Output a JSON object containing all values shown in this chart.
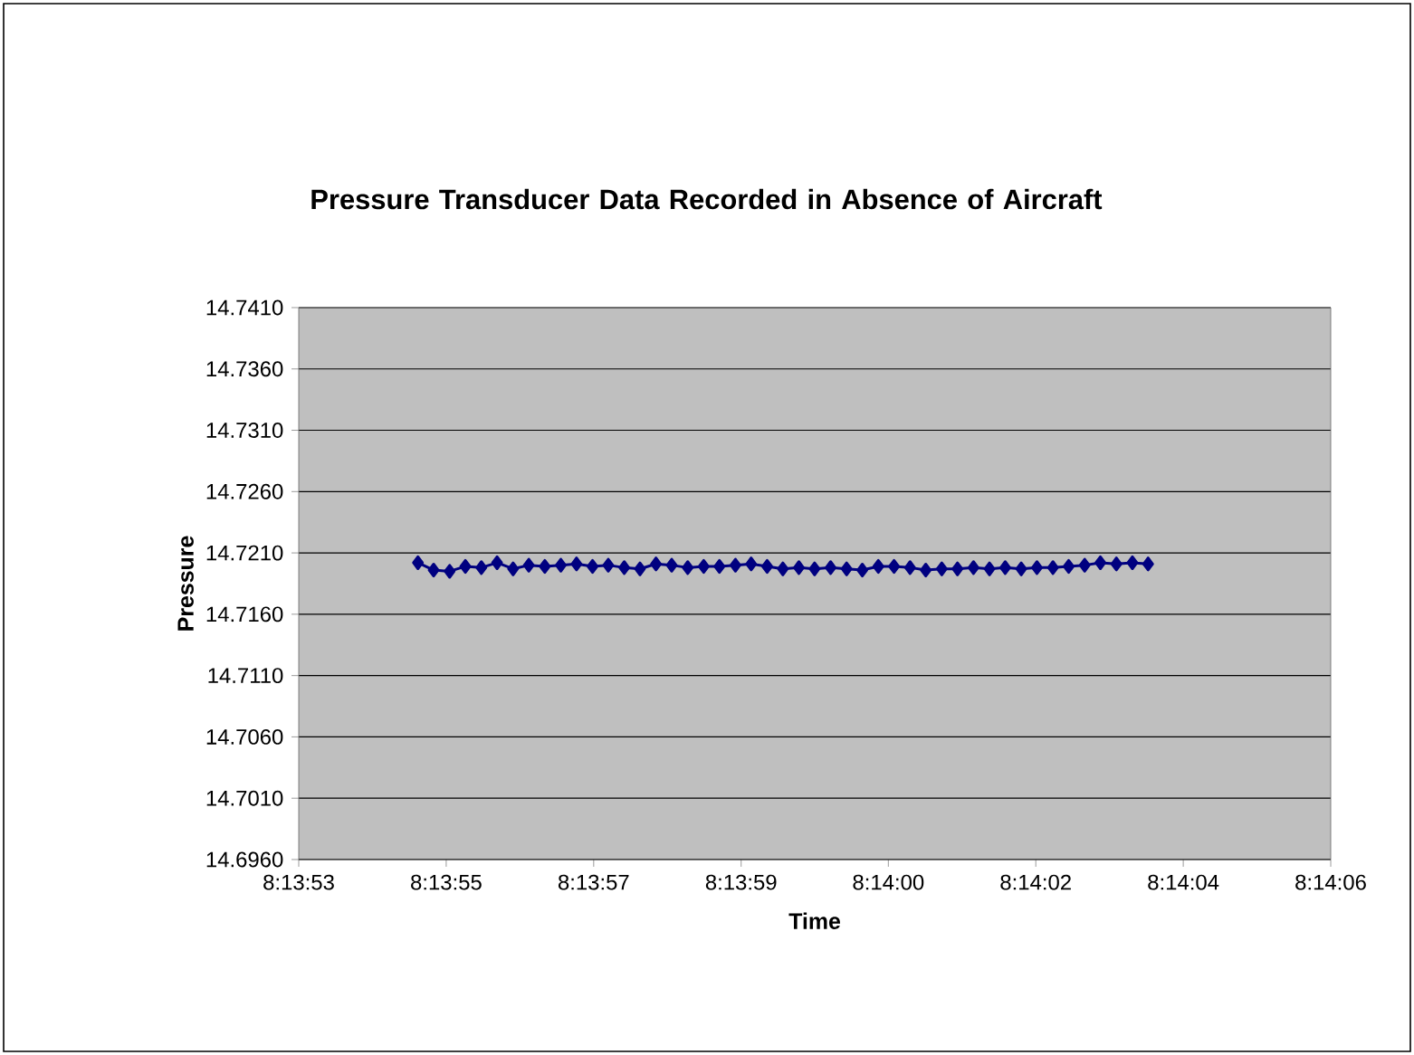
{
  "chart_data": {
    "type": "line",
    "title": "Pressure Transducer Data Recorded in Absence of Aircraft",
    "xlabel": "Time",
    "ylabel": "Pressure",
    "xlim": [
      8.231389,
      8.235
    ],
    "xticks": [
      {
        "value": 8.231389,
        "label": "8:13:53"
      },
      {
        "value": 8.231905,
        "label": "8:13:55"
      },
      {
        "value": 8.232421,
        "label": "8:13:57"
      },
      {
        "value": 8.232937,
        "label": "8:13:59"
      },
      {
        "value": 8.233452,
        "label": "8:14:00"
      },
      {
        "value": 8.233968,
        "label": "8:14:02"
      },
      {
        "value": 8.234484,
        "label": "8:14:04"
      },
      {
        "value": 8.235,
        "label": "8:14:06"
      }
    ],
    "ylim": [
      14.696,
      14.741
    ],
    "yticks": [
      {
        "value": 14.696,
        "label": "14.6960"
      },
      {
        "value": 14.701,
        "label": "14.7010"
      },
      {
        "value": 14.706,
        "label": "14.7060"
      },
      {
        "value": 14.711,
        "label": "14.7110"
      },
      {
        "value": 14.716,
        "label": "14.7160"
      },
      {
        "value": 14.721,
        "label": "14.7210"
      },
      {
        "value": 14.726,
        "label": "14.7260"
      },
      {
        "value": 14.731,
        "label": "14.7310"
      },
      {
        "value": 14.736,
        "label": "14.7360"
      },
      {
        "value": 14.741,
        "label": "14.7410"
      }
    ],
    "grid": "y",
    "marker": "diamond",
    "line_style": "solid",
    "x": [
      8.231806,
      8.231861,
      8.231917,
      8.231972,
      8.232028,
      8.232083,
      8.232139,
      8.232194,
      8.23225,
      8.232306,
      8.232361,
      8.232417,
      8.232472,
      8.232528,
      8.232583,
      8.232639,
      8.232694,
      8.23275,
      8.232806,
      8.232861,
      8.232917,
      8.232972,
      8.233028,
      8.233083,
      8.233139,
      8.233194,
      8.23325,
      8.233306,
      8.233361,
      8.233417,
      8.233472,
      8.233528,
      8.233583,
      8.233639,
      8.233694,
      8.23375,
      8.233806,
      8.233861,
      8.233917,
      8.233972,
      8.234028,
      8.234083,
      8.234139,
      8.234194,
      8.23425,
      8.234306,
      8.234361
    ],
    "series": [
      {
        "color": "#000080",
        "values": [
          14.7202,
          14.7196,
          14.7195,
          14.7199,
          14.7198,
          14.7202,
          14.7197,
          14.72,
          14.7199,
          14.72,
          14.7201,
          14.7199,
          14.72,
          14.7198,
          14.7197,
          14.7201,
          14.72,
          14.7198,
          14.7199,
          14.7199,
          14.72,
          14.7201,
          14.7199,
          14.7197,
          14.7198,
          14.7197,
          14.7198,
          14.7197,
          14.7196,
          14.7199,
          14.7199,
          14.7198,
          14.7196,
          14.7197,
          14.7197,
          14.7198,
          14.7197,
          14.7198,
          14.7197,
          14.7198,
          14.7198,
          14.7199,
          14.72,
          14.7202,
          14.7201,
          14.7202,
          14.7201
        ]
      }
    ]
  }
}
